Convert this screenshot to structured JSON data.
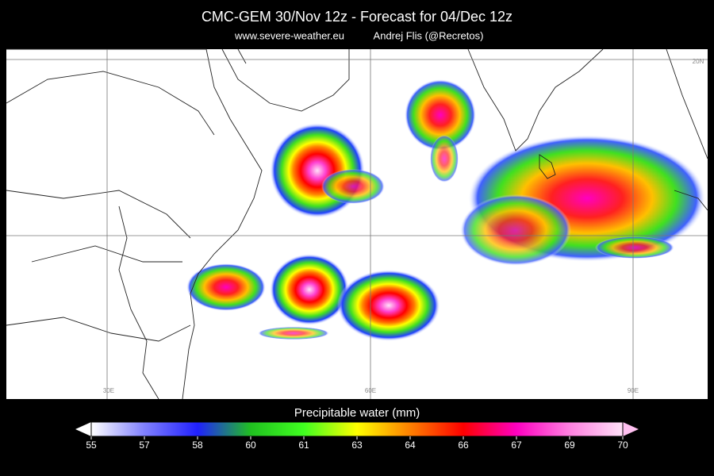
{
  "header": {
    "title": "CMC-GEM 30/Nov 12z - Forecast for 04/Dec 12z",
    "subtitle_left": "www.severe-weather.eu",
    "subtitle_right": "Andrej Flis (@Recretos)"
  },
  "map": {
    "grid_labels": [
      "30E",
      "60E",
      "90E",
      "20N"
    ]
  },
  "colorbar": {
    "label": "Precipitable water (mm)",
    "range": [
      55,
      70
    ],
    "ticks": [
      55,
      {
        "value": 56.5,
        "label": "57"
      },
      58,
      {
        "value": 59.5,
        "label": "60"
      },
      61,
      {
        "value": 62.5,
        "label": "63"
      },
      64,
      {
        "value": 65.5,
        "label": "66"
      },
      67,
      {
        "value": 68.5,
        "label": "69"
      },
      70
    ],
    "colors": [
      "#ffffff",
      "#8080ff",
      "#2020ff",
      "#20c020",
      "#40ff20",
      "#ffff00",
      "#ff8000",
      "#ff0000",
      "#ff00c0",
      "#ff80e0",
      "#ffe0f8"
    ]
  }
}
